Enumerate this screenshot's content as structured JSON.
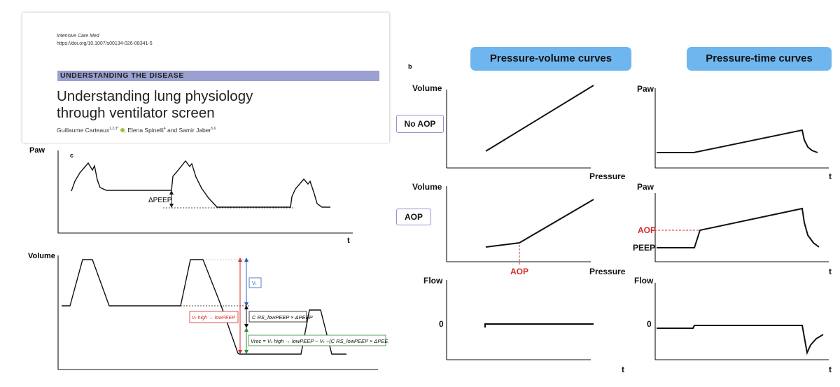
{
  "paper": {
    "journal": "Intensive Care Med",
    "doi": "https://doi.org/10.1007/s00134-026-08341-5",
    "category": "UNDERSTANDING THE DISEASE",
    "title_line1": "Understanding lung physiology",
    "title_line2": "through ventilator screen",
    "authors": [
      {
        "name": "Guillaume Carteaux",
        "sup": "1,2,3*"
      },
      {
        "name": "Elena Spinelli",
        "sup": "4"
      },
      {
        "name": "Samir Jaber",
        "sup": "5,6"
      }
    ],
    "author_separator": ", ",
    "author_and": " and "
  },
  "panel_c": {
    "letter": "c",
    "paw_label": "Paw",
    "volume_label": "Volume",
    "t_label": "t",
    "delta_peep": "ΔPEEP",
    "vt_label": "Vₜ",
    "vt_high_label": "Vₜ high → lowPEEP",
    "crs_label": "C RS_lowPEEP × ΔPEEP",
    "vrec_label": "Vrec = Vₜ high → lowPEEP − Vₜ −(C RS_lowPEEP × ΔPEEP)",
    "colors": {
      "red": "#d42b2b",
      "blue": "#2b5fb5",
      "green": "#2f8a3a"
    }
  },
  "panel_b": {
    "letter": "b",
    "pv_header": "Pressure-volume curves",
    "pt_header": "Pressure-time curves",
    "no_aop_tag": "No AOP",
    "aop_tag": "AOP",
    "volume_label": "Volume",
    "pressure_label": "Pressure",
    "paw_label": "Paw",
    "flow_label": "Flow",
    "t_label": "t",
    "zero_label": "0",
    "aop_marker": "AOP",
    "peep_label": "PEEP",
    "accent_red": "#d42b2b",
    "pill_color": "#6fb6ee"
  }
}
